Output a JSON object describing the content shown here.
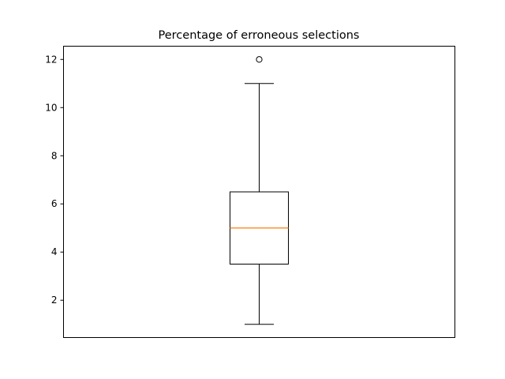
{
  "chart_data": {
    "type": "boxplot",
    "title": "Percentage of erroneous selections",
    "xlabel": "",
    "ylabel": "",
    "ylim": [
      0.45,
      12.55
    ],
    "yticks": [
      2,
      4,
      6,
      8,
      10,
      12
    ],
    "grid": false,
    "boxes": [
      {
        "whisker_low": 1,
        "q1": 3.5,
        "median": 5,
        "q3": 6.5,
        "whisker_high": 11,
        "outliers": [
          12
        ]
      }
    ]
  },
  "colors": {
    "axes": "#000000",
    "box": "#000000",
    "median": "#ff7f0e",
    "background": "#ffffff"
  }
}
